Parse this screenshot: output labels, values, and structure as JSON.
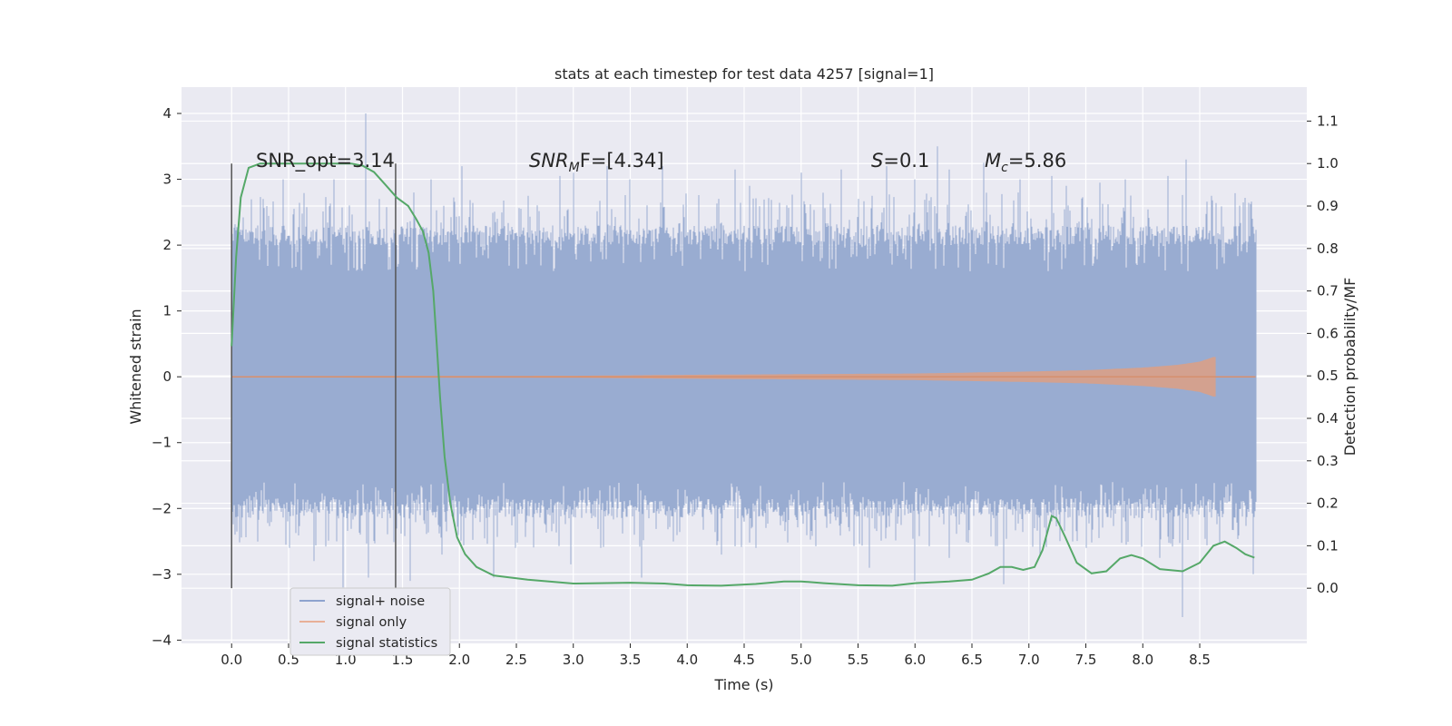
{
  "chart_data": {
    "type": "line",
    "title": "stats at each timestep for test data 4257 [signal=1]",
    "xlabel": "Time (s)",
    "ylabel": "Whitened strain",
    "y2label": "Detection probability/MF",
    "xlim": [
      -0.44,
      9.44
    ],
    "ylim": [
      -4.05,
      4.4
    ],
    "y2lim": [
      -0.13,
      1.18
    ],
    "xticks": [
      "0.0",
      "0.5",
      "1.0",
      "1.5",
      "2.0",
      "2.5",
      "3.0",
      "3.5",
      "4.0",
      "4.5",
      "5.0",
      "5.5",
      "6.0",
      "6.5",
      "7.0",
      "7.5",
      "8.0",
      "8.5"
    ],
    "yticks": [
      "4",
      "3",
      "2",
      "1",
      "0",
      "−1",
      "−2",
      "−3",
      "−4"
    ],
    "y2ticks": [
      "1.1",
      "1.0",
      "0.9",
      "0.8",
      "0.7",
      "0.6",
      "0.5",
      "0.4",
      "0.3",
      "0.2",
      "0.1",
      "0.0"
    ],
    "grid": true,
    "legend_position": "lower-left",
    "annotations": {
      "snr_opt": "SNR_opt=3.14",
      "snr_mf_label": "SNR",
      "snr_mf_sub": "M",
      "snr_mf_suffix": "F=[4.34]",
      "s_label": "S",
      "s_value": "=0.1",
      "mc_label": "M",
      "mc_sub": "c",
      "mc_value": "=5.86"
    },
    "vertical_lines": [
      {
        "x": 0.0,
        "ymin": 0.0,
        "ymax": 1.0
      },
      {
        "x": 1.44,
        "ymin": 0.0,
        "ymax": 1.0
      }
    ],
    "series": [
      {
        "name": "signal+ noise",
        "axis": "left",
        "color": "#4c72b0",
        "x_range": [
          0.0,
          8.99
        ],
        "core_band": [
          -1.85,
          2.0
        ],
        "max_peaks": [
          [
            0.07,
            2.2
          ],
          [
            0.28,
            2.7
          ],
          [
            0.45,
            3.0
          ],
          [
            0.9,
            3.0
          ],
          [
            1.18,
            4.0
          ],
          [
            1.3,
            2.7
          ],
          [
            1.6,
            2.8
          ],
          [
            1.75,
            3.0
          ],
          [
            2.02,
            3.2
          ],
          [
            2.6,
            2.75
          ],
          [
            2.88,
            3.05
          ],
          [
            3.0,
            3.1
          ],
          [
            3.3,
            3.2
          ],
          [
            3.5,
            3.0
          ],
          [
            3.78,
            3.2
          ],
          [
            4.42,
            3.15
          ],
          [
            4.55,
            2.9
          ],
          [
            5.0,
            3.1
          ],
          [
            5.35,
            3.15
          ],
          [
            5.75,
            3.2
          ],
          [
            6.0,
            3.0
          ],
          [
            6.2,
            3.5
          ],
          [
            6.3,
            3.15
          ],
          [
            6.6,
            3.25
          ],
          [
            6.92,
            3.0
          ],
          [
            7.2,
            3.05
          ],
          [
            7.33,
            2.9
          ],
          [
            7.62,
            2.95
          ],
          [
            7.85,
            3.0
          ],
          [
            8.22,
            3.05
          ],
          [
            8.38,
            3.3
          ],
          [
            8.6,
            2.75
          ],
          [
            8.88,
            2.65
          ]
        ],
        "min_troughs": [
          [
            0.05,
            -2.35
          ],
          [
            0.48,
            -2.55
          ],
          [
            0.72,
            -2.8
          ],
          [
            0.98,
            -3.2
          ],
          [
            1.2,
            -3.05
          ],
          [
            1.57,
            -3.1
          ],
          [
            1.85,
            -2.7
          ],
          [
            2.3,
            -3.05
          ],
          [
            2.98,
            -2.85
          ],
          [
            3.6,
            -3.05
          ],
          [
            3.88,
            -2.5
          ],
          [
            4.3,
            -2.7
          ],
          [
            4.6,
            -2.6
          ],
          [
            5.6,
            -2.9
          ],
          [
            6.0,
            -3.1
          ],
          [
            6.3,
            -2.75
          ],
          [
            6.78,
            -3.15
          ],
          [
            7.1,
            -2.7
          ],
          [
            7.5,
            -2.6
          ],
          [
            8.15,
            -2.75
          ],
          [
            8.35,
            -3.65
          ],
          [
            8.97,
            -3.0
          ]
        ]
      },
      {
        "name": "signal only",
        "axis": "left",
        "color": "#dd8452",
        "x_range": [
          0.0,
          8.99
        ],
        "chirp_end": 8.65,
        "envelope": [
          [
            0.0,
            0.01
          ],
          [
            3.0,
            0.015
          ],
          [
            4.0,
            0.03
          ],
          [
            5.0,
            0.04
          ],
          [
            6.0,
            0.05
          ],
          [
            7.0,
            0.08
          ],
          [
            7.5,
            0.1
          ],
          [
            8.0,
            0.14
          ],
          [
            8.3,
            0.18
          ],
          [
            8.5,
            0.23
          ],
          [
            8.62,
            0.3
          ]
        ]
      },
      {
        "name": "signal statistics",
        "axis": "right",
        "color": "#55a868",
        "points": [
          [
            0.0,
            0.57
          ],
          [
            0.04,
            0.78
          ],
          [
            0.08,
            0.92
          ],
          [
            0.15,
            0.99
          ],
          [
            0.25,
            1.0
          ],
          [
            0.5,
            1.0
          ],
          [
            0.8,
            1.0
          ],
          [
            1.05,
            1.0
          ],
          [
            1.15,
            0.995
          ],
          [
            1.25,
            0.98
          ],
          [
            1.35,
            0.95
          ],
          [
            1.45,
            0.92
          ],
          [
            1.55,
            0.9
          ],
          [
            1.62,
            0.87
          ],
          [
            1.68,
            0.84
          ],
          [
            1.73,
            0.79
          ],
          [
            1.77,
            0.7
          ],
          [
            1.8,
            0.58
          ],
          [
            1.83,
            0.45
          ],
          [
            1.87,
            0.31
          ],
          [
            1.92,
            0.2
          ],
          [
            1.98,
            0.12
          ],
          [
            2.05,
            0.08
          ],
          [
            2.15,
            0.05
          ],
          [
            2.3,
            0.03
          ],
          [
            2.6,
            0.02
          ],
          [
            3.0,
            0.011
          ],
          [
            3.5,
            0.013
          ],
          [
            3.8,
            0.011
          ],
          [
            4.0,
            0.007
          ],
          [
            4.3,
            0.006
          ],
          [
            4.6,
            0.01
          ],
          [
            4.85,
            0.016
          ],
          [
            5.0,
            0.016
          ],
          [
            5.2,
            0.012
          ],
          [
            5.5,
            0.007
          ],
          [
            5.8,
            0.006
          ],
          [
            6.0,
            0.012
          ],
          [
            6.3,
            0.016
          ],
          [
            6.5,
            0.02
          ],
          [
            6.65,
            0.035
          ],
          [
            6.75,
            0.05
          ],
          [
            6.85,
            0.05
          ],
          [
            6.95,
            0.043
          ],
          [
            7.05,
            0.05
          ],
          [
            7.12,
            0.09
          ],
          [
            7.18,
            0.15
          ],
          [
            7.2,
            0.17
          ],
          [
            7.24,
            0.165
          ],
          [
            7.32,
            0.12
          ],
          [
            7.42,
            0.06
          ],
          [
            7.55,
            0.035
          ],
          [
            7.68,
            0.04
          ],
          [
            7.8,
            0.07
          ],
          [
            7.9,
            0.078
          ],
          [
            8.0,
            0.07
          ],
          [
            8.15,
            0.045
          ],
          [
            8.35,
            0.04
          ],
          [
            8.5,
            0.06
          ],
          [
            8.62,
            0.1
          ],
          [
            8.72,
            0.11
          ],
          [
            8.82,
            0.095
          ],
          [
            8.9,
            0.08
          ],
          [
            8.98,
            0.072
          ]
        ]
      }
    ]
  }
}
